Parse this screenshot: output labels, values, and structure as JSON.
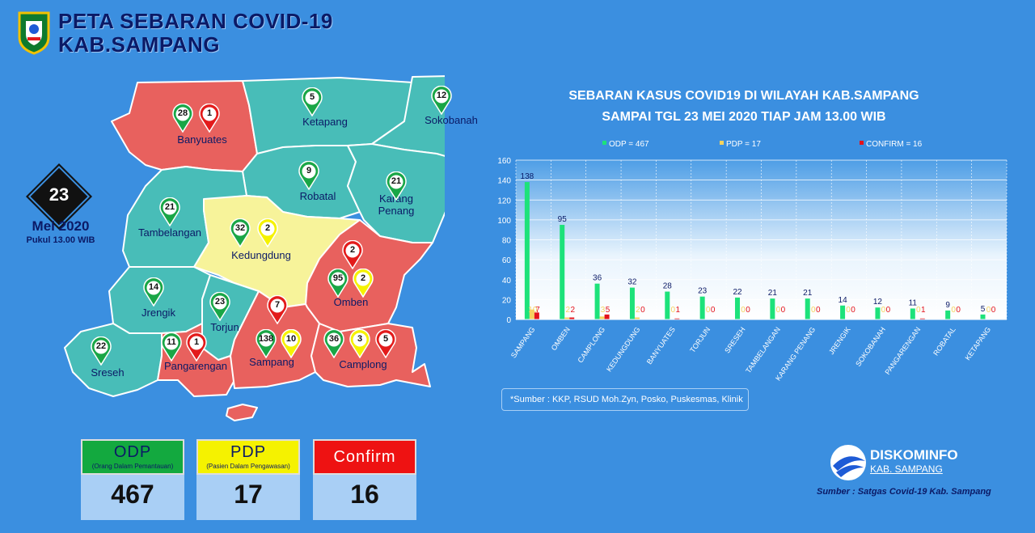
{
  "header": {
    "title_line1": "PETA SEBARAN COVID-19",
    "title_line2": "KAB.SAMPANG"
  },
  "date_badge": {
    "day": "23",
    "month": "Mei 2020",
    "time": "Pukul 13.00 WIB"
  },
  "map": {
    "regions": [
      {
        "name": "Banyuates",
        "color": "#e8615e",
        "pins": [
          {
            "value": "28",
            "kind": "green"
          },
          {
            "value": "1",
            "kind": "red"
          }
        ]
      },
      {
        "name": "Ketapang",
        "color": "#48bdb8",
        "pins": [
          {
            "value": "5",
            "kind": "green"
          }
        ]
      },
      {
        "name": "Sokobanah",
        "color": "#48bdb8",
        "pins": [
          {
            "value": "12",
            "kind": "green"
          }
        ]
      },
      {
        "name": "Robatal",
        "color": "#48bdb8",
        "pins": [
          {
            "value": "9",
            "kind": "green"
          }
        ]
      },
      {
        "name": "Karang Penang",
        "color": "#48bdb8",
        "pins": [
          {
            "value": "21",
            "kind": "green"
          }
        ]
      },
      {
        "name": "Tambelangan",
        "color": "#48bdb8",
        "pins": [
          {
            "value": "21",
            "kind": "green"
          }
        ]
      },
      {
        "name": "Kedungdung",
        "color": "#f7f39a",
        "pins": [
          {
            "value": "32",
            "kind": "green"
          },
          {
            "value": "2",
            "kind": "yellow"
          }
        ]
      },
      {
        "name": "Omben",
        "color": "#e8615e",
        "pins": [
          {
            "value": "2",
            "kind": "red"
          },
          {
            "value": "95",
            "kind": "green"
          },
          {
            "value": "2",
            "kind": "yellow"
          }
        ]
      },
      {
        "name": "Jrengik",
        "color": "#48bdb8",
        "pins": [
          {
            "value": "14",
            "kind": "green"
          }
        ]
      },
      {
        "name": "Torjun",
        "color": "#48bdb8",
        "pins": [
          {
            "value": "23",
            "kind": "green"
          }
        ]
      },
      {
        "name": "Sreseh",
        "color": "#48bdb8",
        "pins": [
          {
            "value": "22",
            "kind": "green"
          }
        ]
      },
      {
        "name": "Pangarengan",
        "color": "#e8615e",
        "pins": [
          {
            "value": "11",
            "kind": "green"
          },
          {
            "value": "1",
            "kind": "red"
          }
        ]
      },
      {
        "name": "Sampang",
        "color": "#e8615e",
        "pins": [
          {
            "value": "7",
            "kind": "red"
          },
          {
            "value": "138",
            "kind": "green"
          },
          {
            "value": "10",
            "kind": "yellow"
          }
        ]
      },
      {
        "name": "Camplong",
        "color": "#e8615e",
        "pins": [
          {
            "value": "36",
            "kind": "green"
          },
          {
            "value": "3",
            "kind": "yellow"
          },
          {
            "value": "5",
            "kind": "red"
          }
        ]
      }
    ]
  },
  "summary": {
    "odp": {
      "label": "ODP",
      "sub": "(Orang Dalam Pemantauan)",
      "value": "467",
      "color": "#13a93f"
    },
    "pdp": {
      "label": "PDP",
      "sub": "(Pasien Dalam Pengawasan)",
      "value": "17",
      "color": "#f5f200"
    },
    "confirm": {
      "label": "Confirm",
      "value": "16",
      "color": "#ee1212"
    }
  },
  "chart_title": {
    "line1": "SEBARAN KASUS COVID19 DI WILAYAH KAB.SAMPANG",
    "line2": "SAMPAI TGL 23 MEI 2020 TIAP JAM 13.00 WIB"
  },
  "chart_data": {
    "type": "bar",
    "categories": [
      "SAMPANG",
      "OMBEN",
      "CAMPLONG",
      "KEDUNGDUNG",
      "BANYUATES",
      "TORJUN",
      "SRESEH",
      "TAMBELANGAN",
      "KARANG PENANG",
      "JRENGIK",
      "SOKOBANAH",
      "PANGARENGAN",
      "ROBATAL",
      "KETAPANG"
    ],
    "series": [
      {
        "name": "ODP = 467",
        "color": "#1de27a",
        "values": [
          138,
          95,
          36,
          32,
          28,
          23,
          22,
          21,
          21,
          14,
          12,
          11,
          9,
          5
        ]
      },
      {
        "name": "PDP = 17",
        "color": "#f5d25e",
        "values": [
          10,
          2,
          3,
          2,
          0,
          0,
          0,
          0,
          0,
          0,
          0,
          0,
          0,
          0
        ]
      },
      {
        "name": "CONFIRM = 16",
        "color": "#e3121b",
        "values": [
          7,
          2,
          5,
          0,
          1,
          0,
          0,
          0,
          0,
          0,
          0,
          1,
          0,
          0
        ]
      }
    ],
    "ylim": [
      0,
      160
    ],
    "yticks": [
      0,
      20,
      40,
      60,
      80,
      100,
      120,
      140,
      160
    ],
    "legend": "top",
    "grid": true
  },
  "chart_source": "*Sumber : KKP, RSUD Moh.Zyn, Posko, Puskesmas, Klinik",
  "logo": {
    "name": "DISKOMINFO",
    "sub": "KAB. SAMPANG"
  },
  "footer_source": "Sumber : Satgas Covid-19 Kab. Sampang"
}
